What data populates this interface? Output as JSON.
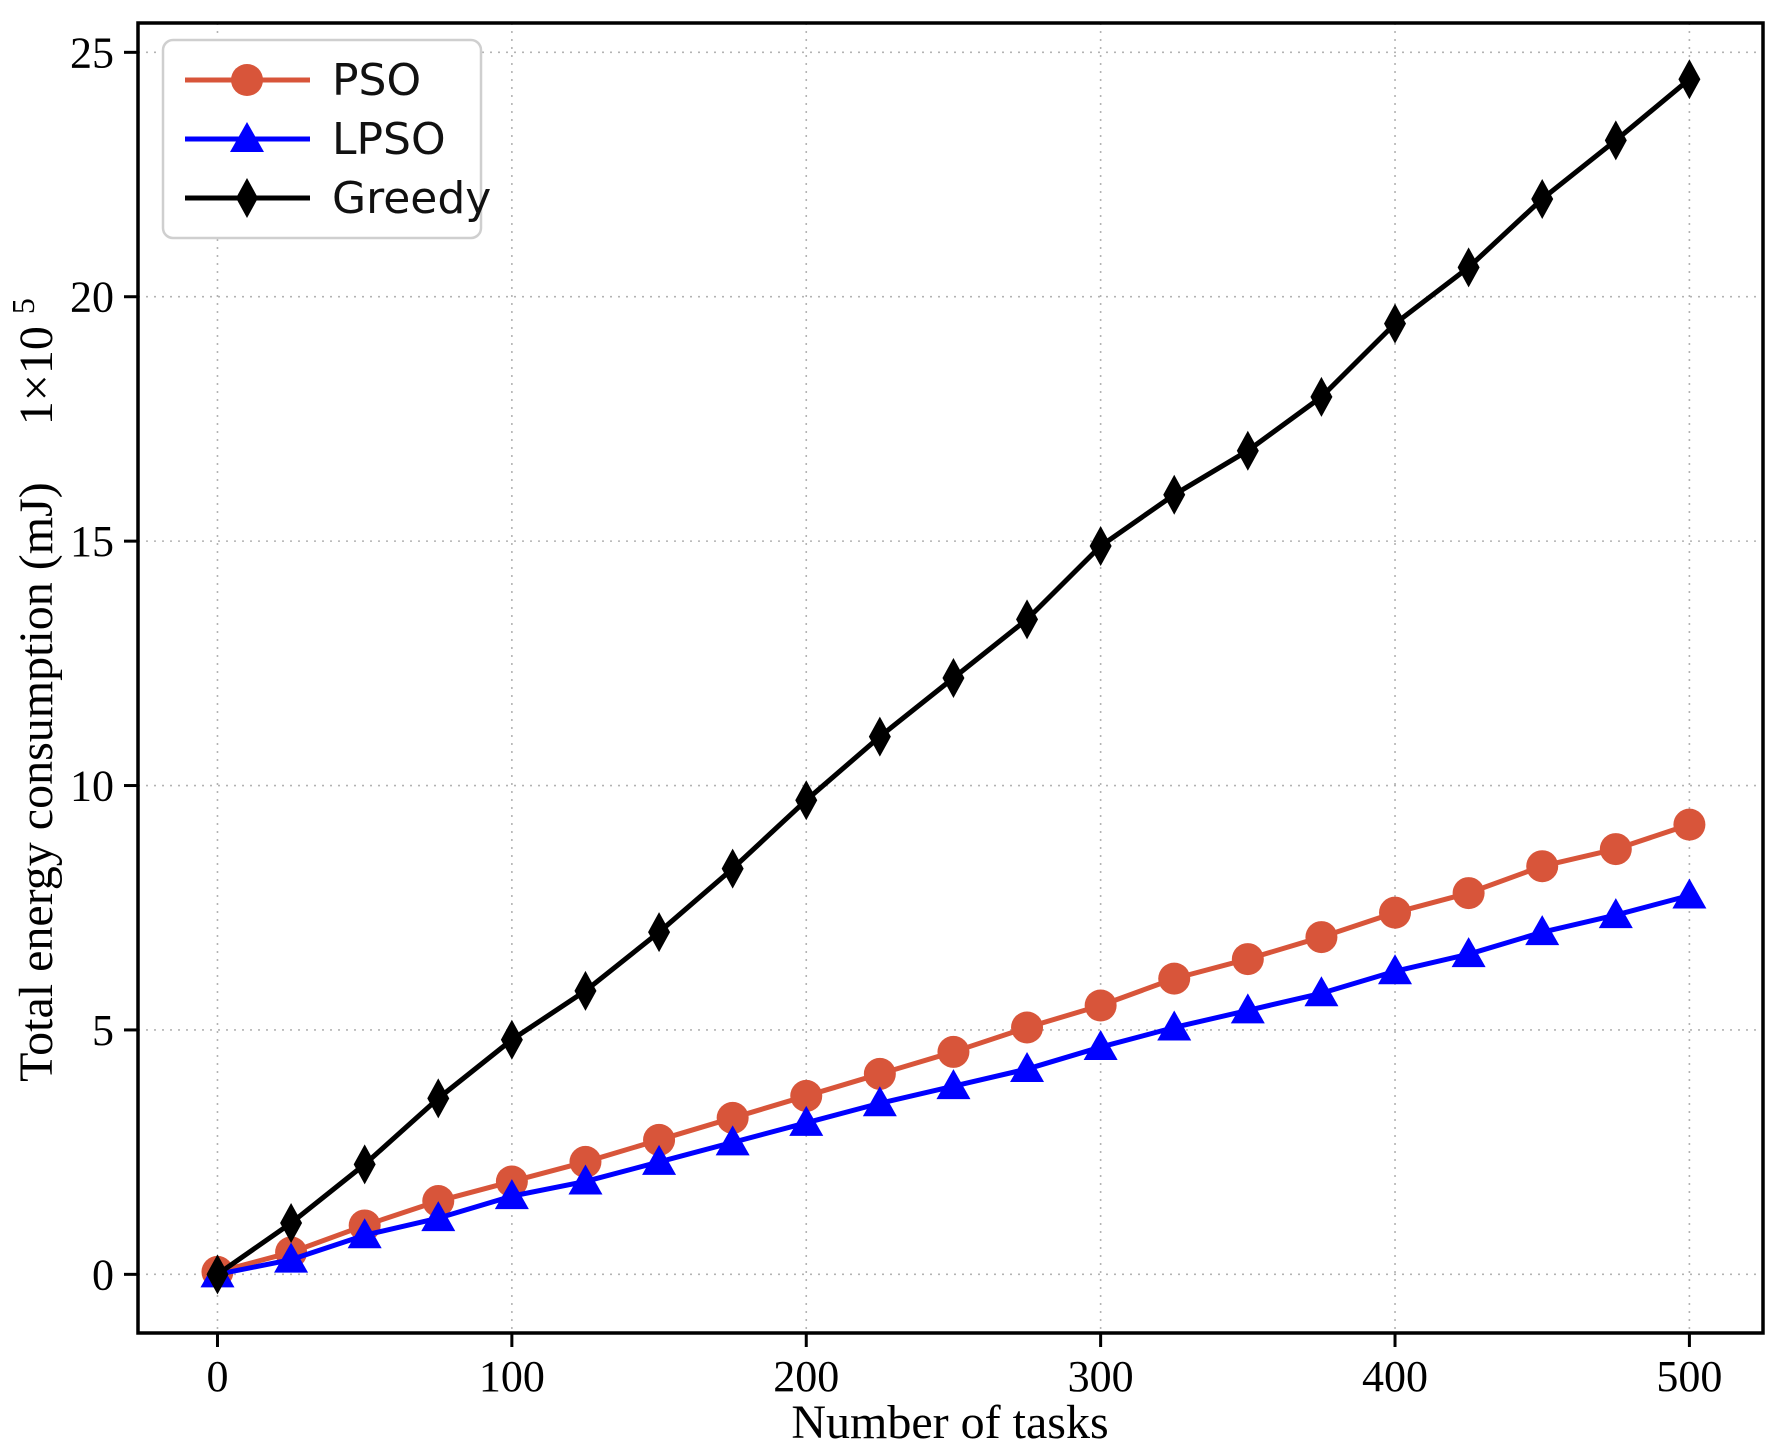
{
  "chart_data": {
    "type": "line",
    "title": "",
    "xlabel": "Number of tasks",
    "ylabel": "Total energy consumption (mJ)",
    "ylabel_scale": {
      "base": "1×10",
      "exp": "5"
    },
    "x": [
      0,
      25,
      50,
      75,
      100,
      125,
      150,
      175,
      200,
      225,
      250,
      275,
      300,
      325,
      350,
      375,
      400,
      425,
      450,
      475,
      500
    ],
    "series": [
      {
        "name": "PSO",
        "color": "#d8553a",
        "marker": "circle",
        "values": [
          0.05,
          0.45,
          1.0,
          1.5,
          1.9,
          2.3,
          2.75,
          3.2,
          3.65,
          4.1,
          4.55,
          5.05,
          5.5,
          6.05,
          6.45,
          6.9,
          7.4,
          7.8,
          8.35,
          8.7,
          9.2
        ]
      },
      {
        "name": "LPSO",
        "color": "#0000ff",
        "marker": "triangle",
        "values": [
          0.0,
          0.3,
          0.8,
          1.15,
          1.6,
          1.9,
          2.3,
          2.7,
          3.1,
          3.5,
          3.85,
          4.2,
          4.65,
          5.05,
          5.4,
          5.75,
          6.2,
          6.55,
          7.0,
          7.35,
          7.75
        ]
      },
      {
        "name": "Greedy",
        "color": "#000000",
        "marker": "diamond",
        "values": [
          0.0,
          1.05,
          2.25,
          3.6,
          4.8,
          5.8,
          7.0,
          8.3,
          9.7,
          11.0,
          12.2,
          13.4,
          14.9,
          15.95,
          16.85,
          17.95,
          19.45,
          20.6,
          22.0,
          23.2,
          24.45
        ]
      }
    ],
    "xticks": [
      0,
      100,
      200,
      300,
      400,
      500
    ],
    "yticks": [
      0,
      5,
      10,
      15,
      20,
      25
    ],
    "xlim": [
      -27,
      525
    ],
    "ylim": [
      -1.2,
      25.6
    ],
    "grid": true,
    "grid_color": "#b3b3b3",
    "frame_color": "#000000",
    "legend_position": "upper-left",
    "legend_border_color": "#cfcfcf",
    "legend_background": "#ffffff"
  }
}
